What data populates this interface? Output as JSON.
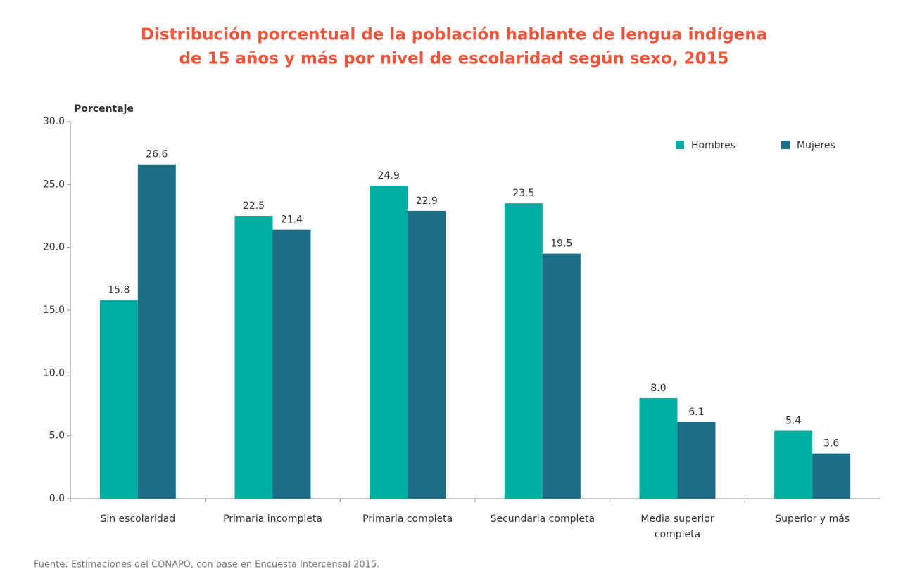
{
  "chart_data": {
    "type": "bar",
    "title": [
      "Distribución porcentual de la población hablante de lengua indígena",
      "de 15 años y más por nivel de escolaridad según sexo, 2015"
    ],
    "y_label": "Porcentaje",
    "source": "Fuente: Estimaciones del CONAPO, con base en Encuesta Intercensal 2015.",
    "categories": [
      "Sin escolaridad",
      "Primaria incompleta",
      "Primaria completa",
      "Secundaria completa",
      "Media superior completa",
      "Superior y más"
    ],
    "series": [
      {
        "name": "Hombres",
        "color": "#00ada1",
        "values": [
          15.8,
          22.5,
          24.9,
          23.5,
          8.0,
          5.4
        ],
        "value_labels": [
          "15.8",
          "22.5",
          "24.9",
          "23.5",
          "8.0",
          "5.4"
        ]
      },
      {
        "name": "Mujeres",
        "color": "#1e6f86",
        "values": [
          26.6,
          21.4,
          22.9,
          19.5,
          6.1,
          3.6
        ],
        "value_labels": [
          "26.6",
          "21.4",
          "22.9",
          "19.5",
          "6.1",
          "3.6"
        ]
      }
    ],
    "ylim": [
      0,
      30
    ],
    "yticks": [
      {
        "value": 0,
        "label": "0.0"
      },
      {
        "value": 5,
        "label": "5.0"
      },
      {
        "value": 10,
        "label": "10.0"
      },
      {
        "value": 15,
        "label": "15.0"
      },
      {
        "value": 20,
        "label": "20.0"
      },
      {
        "value": 25,
        "label": "25.0"
      },
      {
        "value": 30,
        "label": "30.0"
      }
    ],
    "legend": "top-right",
    "grid": false
  }
}
